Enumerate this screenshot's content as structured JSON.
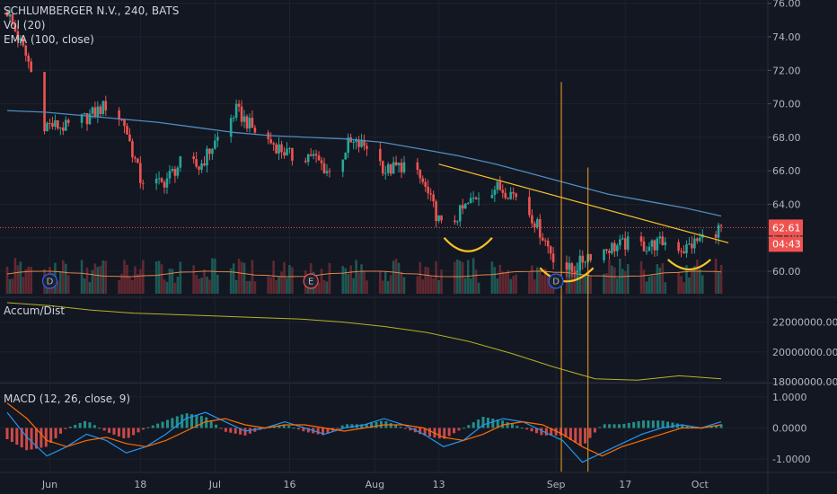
{
  "header": {
    "symbol_line": "SCHLUMBERGER N.V., 240, BATS",
    "vol_label": "Vol (20)",
    "ema_label": "EMA (100, close)"
  },
  "panes": {
    "accum_label": "Accum/Dist",
    "macd_label": "MACD (12, 26, close, 9)"
  },
  "price_badges": {
    "last_price": "62.61",
    "countdown": "04:43"
  },
  "events": [
    "D",
    "E",
    "D"
  ],
  "colors": {
    "background": "#131722",
    "up": "#26a69a",
    "down": "#ef5350",
    "ema": "#4f8bbf",
    "accum": "#b5b225",
    "macd": "#2196f3",
    "signal": "#ff6d00",
    "trendline": "#f7c325",
    "last_price_line": "#ef5350"
  },
  "chart_data": [
    {
      "type": "candlestick",
      "title": "SCHLUMBERGER N.V., 240, BATS",
      "x_ticks": [
        "Jun",
        "18",
        "Jul",
        "16",
        "Aug",
        "13",
        "Sep",
        "17",
        "Oct"
      ],
      "y_ticks": [
        "60.00",
        "62.00",
        "64.00",
        "66.00",
        "68.00",
        "70.00",
        "72.00",
        "74.00",
        "76.00"
      ],
      "ylim": [
        58.5,
        76.2
      ],
      "last_price": 62.61,
      "ohlc_anchors": [
        {
          "x": "May 24",
          "close": 75.5
        },
        {
          "x": "May 28",
          "close": 72.5
        },
        {
          "x": "May 31",
          "close": 68.8
        },
        {
          "x": "Jun 4",
          "close": 68.6
        },
        {
          "x": "Jun 8",
          "close": 69.2
        },
        {
          "x": "Jun 12",
          "close": 70.0
        },
        {
          "x": "Jun 15",
          "close": 68.8
        },
        {
          "x": "Jun 18",
          "close": 65.5
        },
        {
          "x": "Jun 22",
          "close": 65.2
        },
        {
          "x": "Jun 26",
          "close": 66.6
        },
        {
          "x": "Jun 29",
          "close": 66.2
        },
        {
          "x": "Jul 3",
          "close": 68.2
        },
        {
          "x": "Jul 6",
          "close": 69.6
        },
        {
          "x": "Jul 10",
          "close": 68.2
        },
        {
          "x": "Jul 13",
          "close": 67.6
        },
        {
          "x": "Jul 17",
          "close": 66.7
        },
        {
          "x": "Jul 20",
          "close": 67.0
        },
        {
          "x": "Jul 24",
          "close": 65.7
        },
        {
          "x": "Jul 27",
          "close": 67.6
        },
        {
          "x": "Jul 31",
          "close": 67.5
        },
        {
          "x": "Aug 3",
          "close": 66.0
        },
        {
          "x": "Aug 7",
          "close": 66.4
        },
        {
          "x": "Aug 10",
          "close": 65.3
        },
        {
          "x": "Aug 14",
          "close": 62.3
        },
        {
          "x": "Aug 17",
          "close": 63.5
        },
        {
          "x": "Aug 21",
          "close": 64.8
        },
        {
          "x": "Aug 24",
          "close": 65.0
        },
        {
          "x": "Aug 28",
          "close": 64.5
        },
        {
          "x": "Aug 31",
          "close": 63.0
        },
        {
          "x": "Sep 4",
          "close": 60.6
        },
        {
          "x": "Sep 7",
          "close": 60.0
        },
        {
          "x": "Sep 10",
          "close": 61.0
        },
        {
          "x": "Sep 14",
          "close": 61.4
        },
        {
          "x": "Sep 18",
          "close": 61.7
        },
        {
          "x": "Sep 21",
          "close": 61.5
        },
        {
          "x": "Sep 25",
          "close": 61.8
        },
        {
          "x": "Sep 28",
          "close": 61.3
        },
        {
          "x": "Oct 2",
          "close": 62.1
        },
        {
          "x": "Oct 5",
          "close": 62.6
        }
      ],
      "ema": [
        69.6,
        69.5,
        69.3,
        69.1,
        68.9,
        68.6,
        68.3,
        68.1,
        68.0,
        67.9,
        67.7,
        67.3,
        66.9,
        66.4,
        65.8,
        65.2,
        64.6,
        64.2,
        63.8,
        63.3
      ],
      "volume_pattern": "bars along bottom of price pane, teal up / red down"
    },
    {
      "type": "line",
      "title": "Accum/Dist",
      "y_ticks": [
        "18000000.0000",
        "20000000.0000",
        "22000000.0000"
      ],
      "values": [
        23300000,
        23100000,
        22800000,
        22600000,
        22500000,
        22400000,
        22300000,
        22200000,
        22000000,
        21700000,
        21300000,
        20700000,
        19900000,
        19000000,
        18200000,
        18100000,
        18400000,
        18200000
      ]
    },
    {
      "type": "line",
      "title": "MACD (12, 26, close, 9)",
      "y_ticks": [
        "1.0000",
        "0.0000",
        "-1.0000"
      ],
      "ylim": [
        -1.4,
        1.4
      ],
      "series": [
        {
          "name": "MACD",
          "values": [
            0.5,
            -0.3,
            -0.9,
            -0.6,
            -0.2,
            -0.4,
            -0.8,
            -0.6,
            -0.2,
            0.3,
            0.5,
            0.2,
            -0.1,
            0.0,
            0.2,
            0.0,
            -0.2,
            0.0,
            0.1,
            0.3,
            0.1,
            -0.2,
            -0.6,
            -0.4,
            0.1,
            0.3,
            0.2,
            -0.1,
            -0.4,
            -1.1,
            -0.8,
            -0.5,
            -0.2,
            0.0,
            0.1,
            0.0,
            0.2
          ]
        },
        {
          "name": "Signal",
          "values": [
            0.8,
            0.3,
            -0.4,
            -0.6,
            -0.4,
            -0.3,
            -0.5,
            -0.6,
            -0.4,
            -0.1,
            0.2,
            0.3,
            0.1,
            0.0,
            0.1,
            0.1,
            0.0,
            -0.1,
            0.0,
            0.1,
            0.1,
            0.0,
            -0.3,
            -0.4,
            -0.2,
            0.1,
            0.2,
            0.1,
            -0.2,
            -0.6,
            -0.9,
            -0.6,
            -0.4,
            -0.2,
            0.0,
            0.0,
            0.1
          ]
        }
      ]
    }
  ]
}
